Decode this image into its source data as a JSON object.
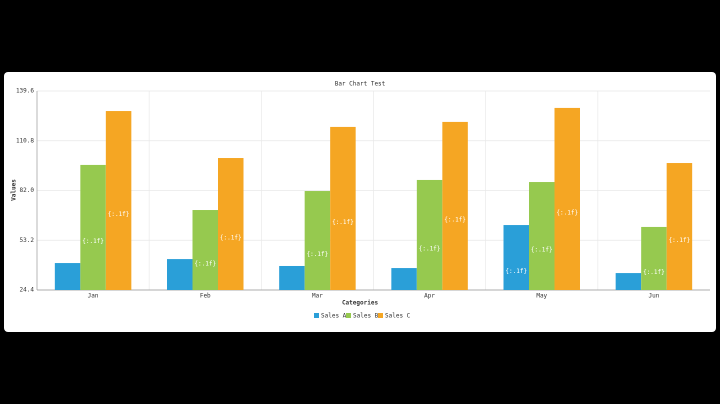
{
  "chart_data": {
    "type": "bar",
    "title": "Bar Chart Test",
    "x_label": "Categories",
    "y_label": "Values",
    "categories": [
      "Jan",
      "Feb",
      "Mar",
      "Apr",
      "May",
      "Jun"
    ],
    "series": [
      {
        "name": "Sales A",
        "color": "#2a9fd8",
        "values": [
          40.0,
          42.3,
          38.3,
          37.1,
          62.0,
          34.2
        ]
      },
      {
        "name": "Sales B",
        "color": "#96c94f",
        "values": [
          96.8,
          70.7,
          81.7,
          88.1,
          86.9,
          60.9
        ]
      },
      {
        "name": "Sales C",
        "color": "#f5a623",
        "values": [
          128.0,
          100.8,
          118.8,
          121.7,
          129.8,
          97.9
        ]
      }
    ],
    "data_label_text": "{:.1f}",
    "ylim": [
      24.4,
      139.6
    ],
    "yticks": [
      24.4,
      53.2,
      {
        "value": 82,
        "label": "82.0"
      },
      110.8,
      139.6
    ],
    "grid": true,
    "legend": "bottom"
  }
}
